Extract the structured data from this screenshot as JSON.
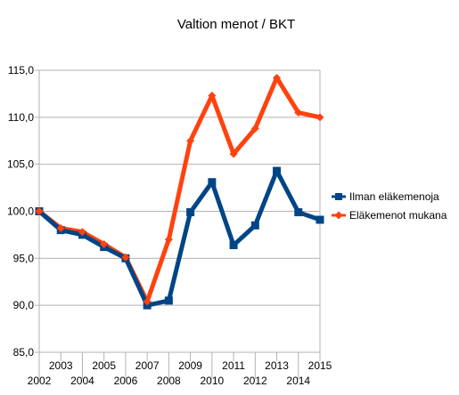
{
  "chart_data": {
    "type": "line",
    "title": "Valtion menot / BKT",
    "xlabel": "",
    "ylabel": "",
    "x": [
      "2002",
      "2003",
      "2004",
      "2005",
      "2006",
      "2007",
      "2008",
      "2009",
      "2010",
      "2011",
      "2012",
      "2013",
      "2014",
      "2015"
    ],
    "ylim": [
      85.0,
      115.0
    ],
    "yticks": [
      "85,0",
      "90,0",
      "95,0",
      "100,0",
      "105,0",
      "110,0",
      "115,0"
    ],
    "grid": true,
    "legend_position": "right",
    "series": [
      {
        "name": "Ilman eläkemenoja",
        "color": "#004586",
        "marker": "square",
        "values": [
          100.0,
          98.0,
          97.5,
          96.2,
          95.0,
          90.0,
          90.5,
          99.9,
          103.1,
          96.4,
          98.5,
          104.3,
          99.9,
          99.1
        ]
      },
      {
        "name": "Eläkemenot mukana",
        "color": "#ff420e",
        "marker": "diamond",
        "values": [
          100.0,
          98.2,
          97.8,
          96.5,
          95.1,
          90.4,
          97.0,
          107.5,
          112.3,
          106.1,
          108.8,
          114.2,
          110.5,
          110.0
        ]
      }
    ]
  }
}
